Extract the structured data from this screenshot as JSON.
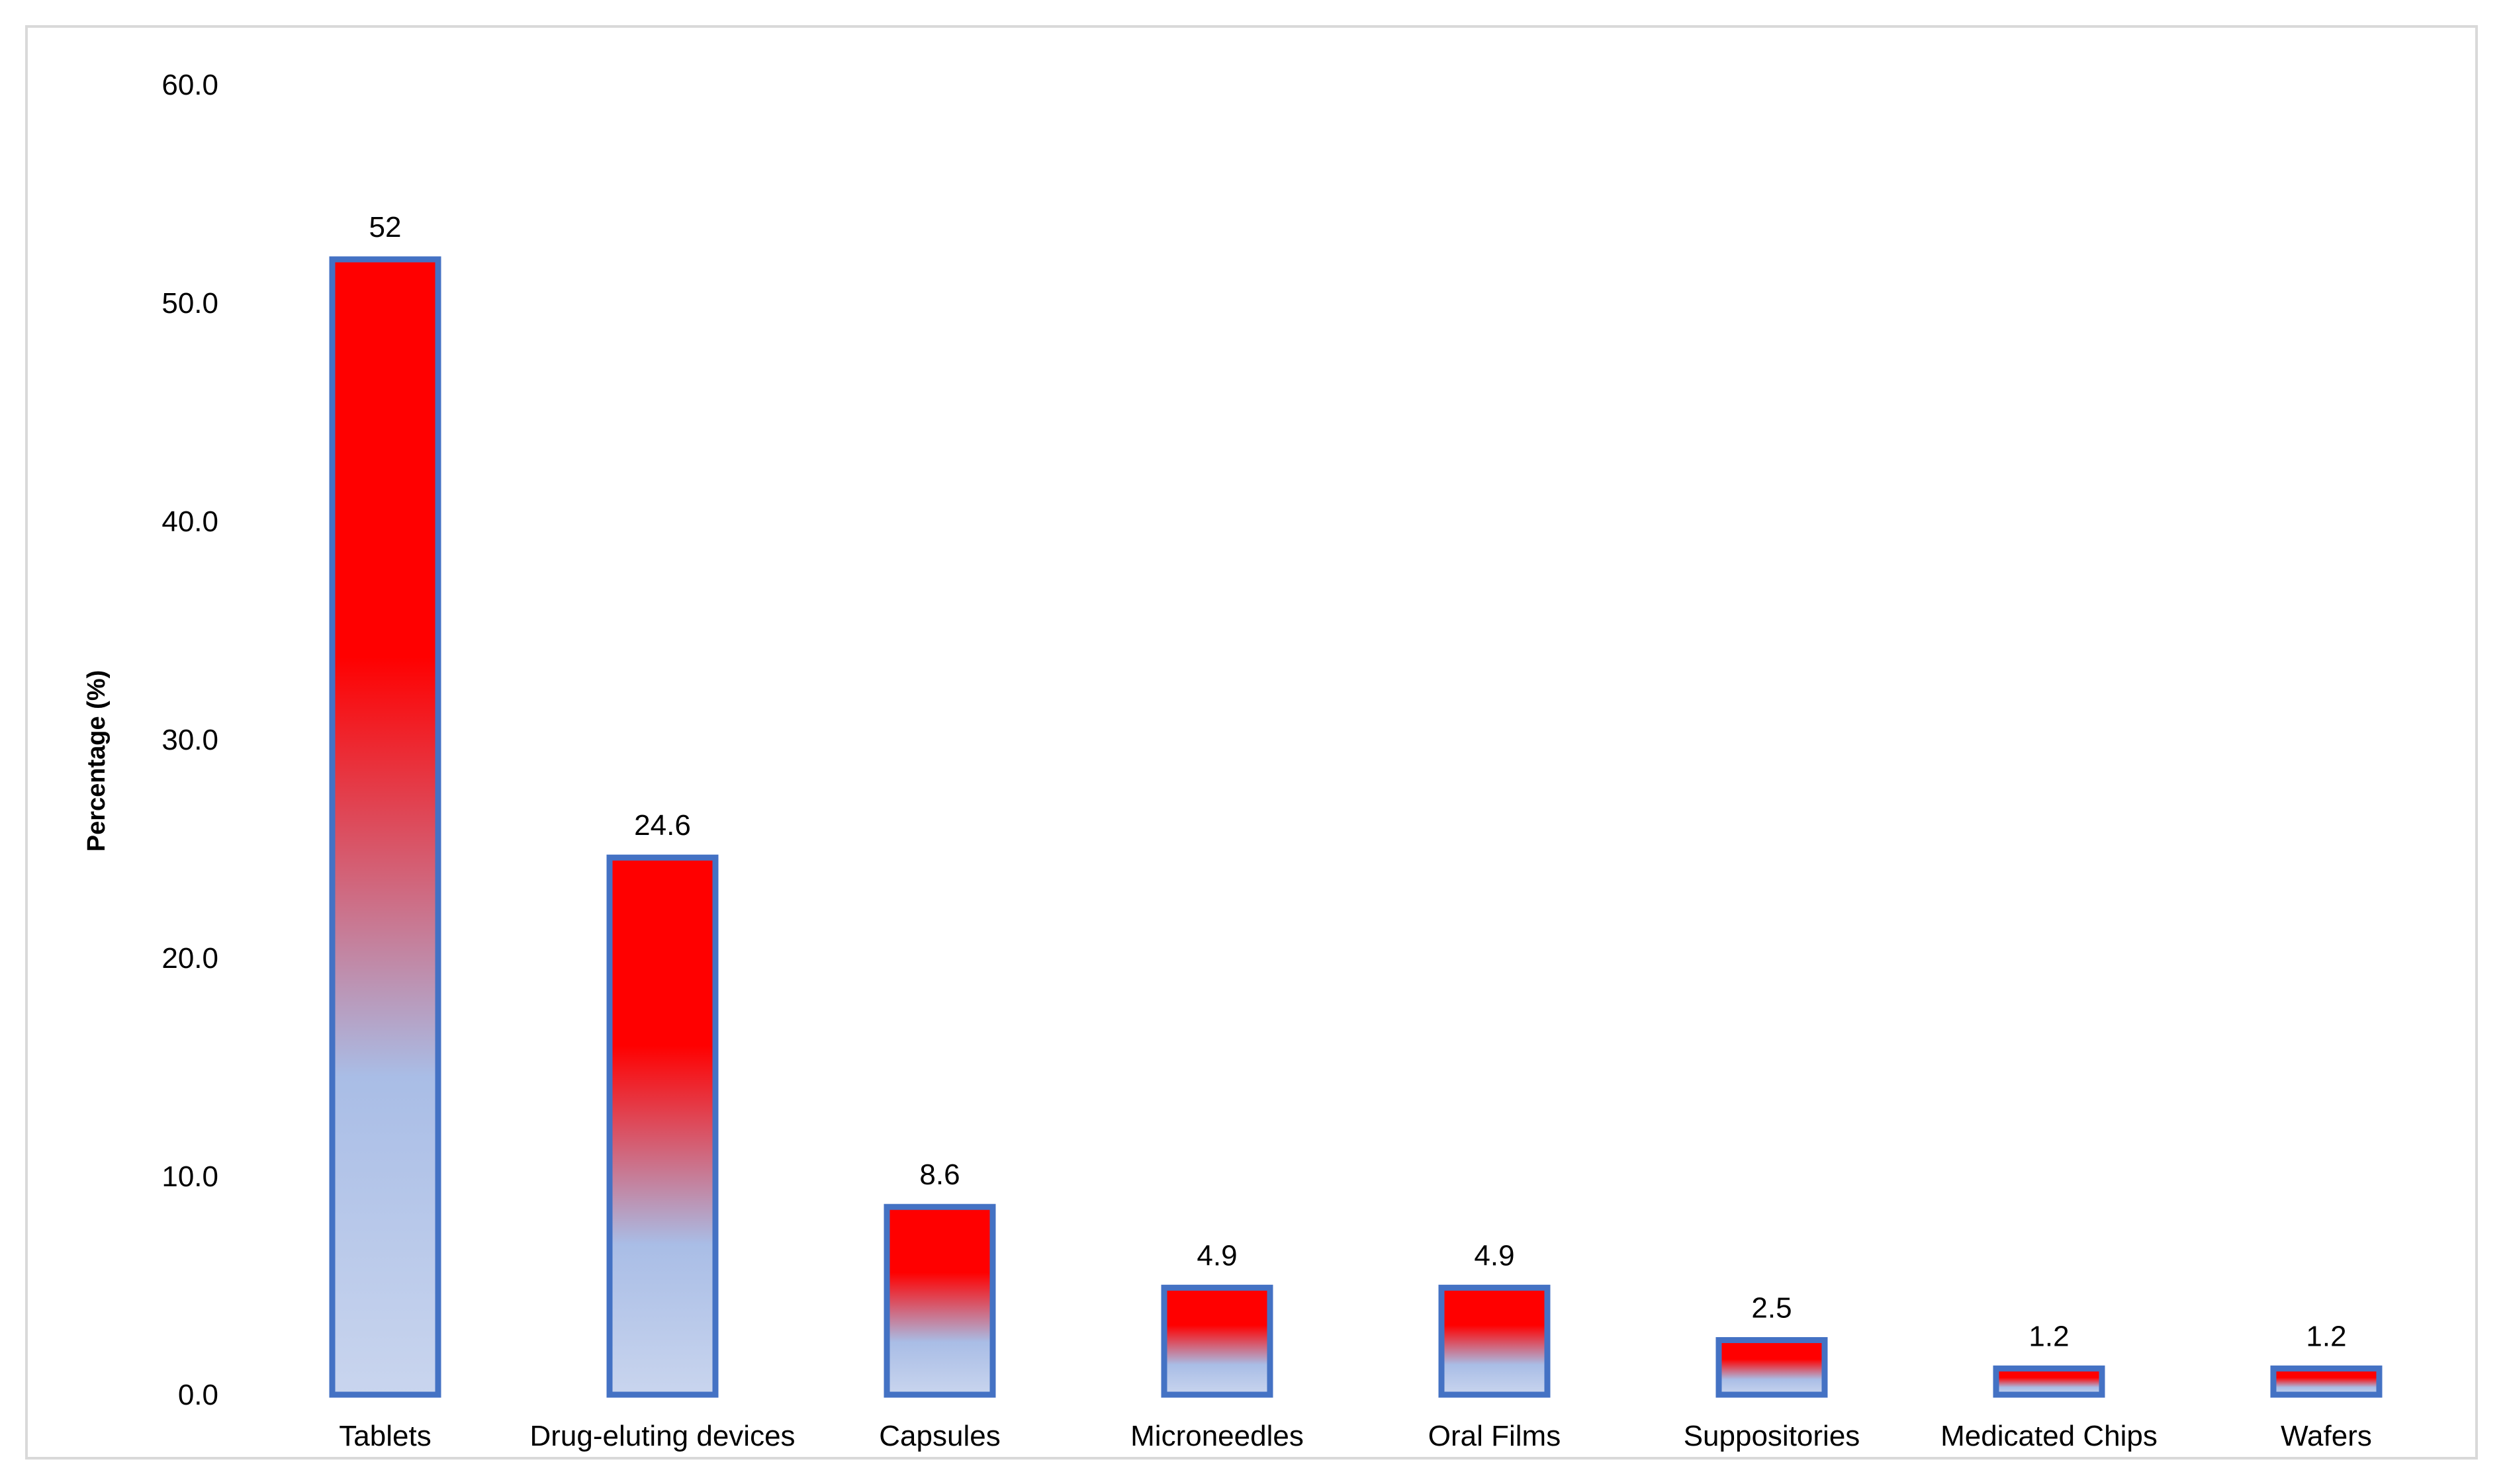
{
  "chart_data": {
    "type": "bar",
    "categories": [
      "Tablets",
      "Drug-eluting devices",
      "Capsules",
      "Microneedles",
      "Oral Films",
      "Suppositories",
      "Medicated Chips",
      "Wafers"
    ],
    "values": [
      52,
      24.6,
      8.6,
      4.9,
      4.9,
      2.5,
      1.2,
      1.2
    ],
    "data_labels": [
      "52",
      "24.6",
      "8.6",
      "4.9",
      "4.9",
      "2.5",
      "1.2",
      "1.2"
    ],
    "title": "",
    "xlabel": "",
    "ylabel": "Percentage (%)",
    "ylim": [
      0,
      60
    ],
    "yticks": [
      "0.0",
      "10.0",
      "20.0",
      "30.0",
      "40.0",
      "50.0",
      "60.0"
    ],
    "grid": false,
    "legend": "none",
    "colors": {
      "bar_top": "#ff0000",
      "bar_bottom": "#c9d5ee",
      "bar_mid": "#a9bde6",
      "bar_border": "#4472c4",
      "frame": "#d9d9d9"
    }
  }
}
